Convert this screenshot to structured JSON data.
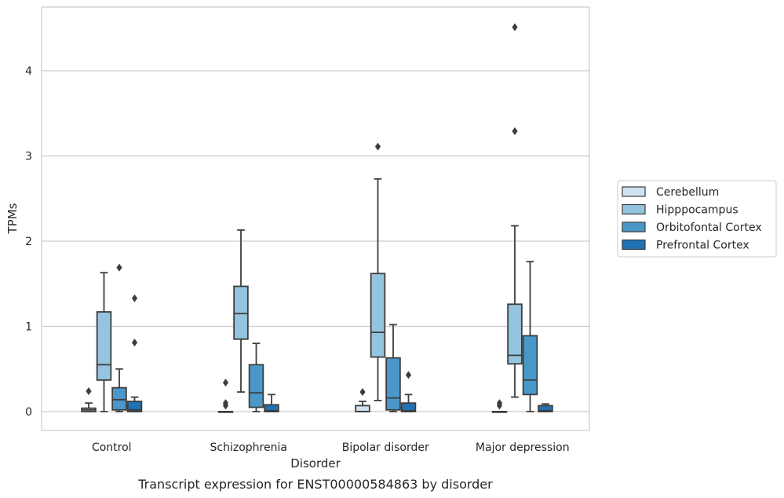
{
  "chart_data": {
    "type": "boxplot",
    "title": "Transcript expression for ENST00000584863 by disorder",
    "xlabel": "Disorder",
    "ylabel": "TPMs",
    "ylim": [
      -0.22,
      4.75
    ],
    "yticks": [
      0,
      1,
      2,
      3,
      4
    ],
    "grid": "horizontal",
    "legend_position": "right",
    "categories": [
      "Control",
      "Schizophrenia",
      "Bipolar disorder",
      "Major depression"
    ],
    "series": [
      {
        "name": "Cerebellum",
        "color": "#d0e1f2",
        "boxes": [
          {
            "whisker_low": 0,
            "q1": 0,
            "median": 0.02,
            "q3": 0.04,
            "whisker_high": 0.1,
            "outliers": [
              0.24
            ]
          },
          {
            "whisker_low": 0,
            "q1": 0,
            "median": 0,
            "q3": 0,
            "whisker_high": 0,
            "outliers": [
              0.34,
              0.1,
              0.07
            ]
          },
          {
            "whisker_low": 0,
            "q1": 0,
            "median": 0,
            "q3": 0.07,
            "whisker_high": 0.12,
            "outliers": [
              0.23
            ]
          },
          {
            "whisker_low": 0,
            "q1": 0,
            "median": 0,
            "q3": 0,
            "whisker_high": 0,
            "outliers": [
              0.1,
              0.07
            ]
          }
        ]
      },
      {
        "name": "Hipppocampus",
        "color": "#94c4df",
        "boxes": [
          {
            "whisker_low": 0,
            "q1": 0.37,
            "median": 0.55,
            "q3": 1.17,
            "whisker_high": 1.63,
            "outliers": []
          },
          {
            "whisker_low": 0.23,
            "q1": 0.85,
            "median": 1.15,
            "q3": 1.47,
            "whisker_high": 2.13,
            "outliers": []
          },
          {
            "whisker_low": 0.13,
            "q1": 0.64,
            "median": 0.93,
            "q3": 1.62,
            "whisker_high": 2.73,
            "outliers": [
              3.11
            ]
          },
          {
            "whisker_low": 0.17,
            "q1": 0.56,
            "median": 0.66,
            "q3": 1.26,
            "whisker_high": 2.18,
            "outliers": [
              3.29,
              4.51
            ]
          }
        ]
      },
      {
        "name": "Orbitofontal Cortex",
        "color": "#4a98c9",
        "boxes": [
          {
            "whisker_low": 0,
            "q1": 0.02,
            "median": 0.14,
            "q3": 0.28,
            "whisker_high": 0.5,
            "outliers": [
              1.69
            ]
          },
          {
            "whisker_low": 0,
            "q1": 0.05,
            "median": 0.22,
            "q3": 0.55,
            "whisker_high": 0.8,
            "outliers": []
          },
          {
            "whisker_low": 0,
            "q1": 0.02,
            "median": 0.16,
            "q3": 0.63,
            "whisker_high": 1.02,
            "outliers": []
          },
          {
            "whisker_low": 0,
            "q1": 0.2,
            "median": 0.37,
            "q3": 0.89,
            "whisker_high": 1.76,
            "outliers": []
          }
        ]
      },
      {
        "name": "Prefrontal Cortex",
        "color": "#2171b5",
        "boxes": [
          {
            "whisker_low": 0,
            "q1": 0,
            "median": 0.02,
            "q3": 0.12,
            "whisker_high": 0.17,
            "outliers": [
              0.81,
              1.33
            ]
          },
          {
            "whisker_low": 0,
            "q1": 0,
            "median": 0.01,
            "q3": 0.08,
            "whisker_high": 0.2,
            "outliers": []
          },
          {
            "whisker_low": 0,
            "q1": 0,
            "median": 0.01,
            "q3": 0.1,
            "whisker_high": 0.2,
            "outliers": [
              0.43
            ]
          },
          {
            "whisker_low": 0,
            "q1": 0,
            "median": 0.01,
            "q3": 0.07,
            "whisker_high": 0.09,
            "outliers": []
          }
        ]
      }
    ]
  }
}
